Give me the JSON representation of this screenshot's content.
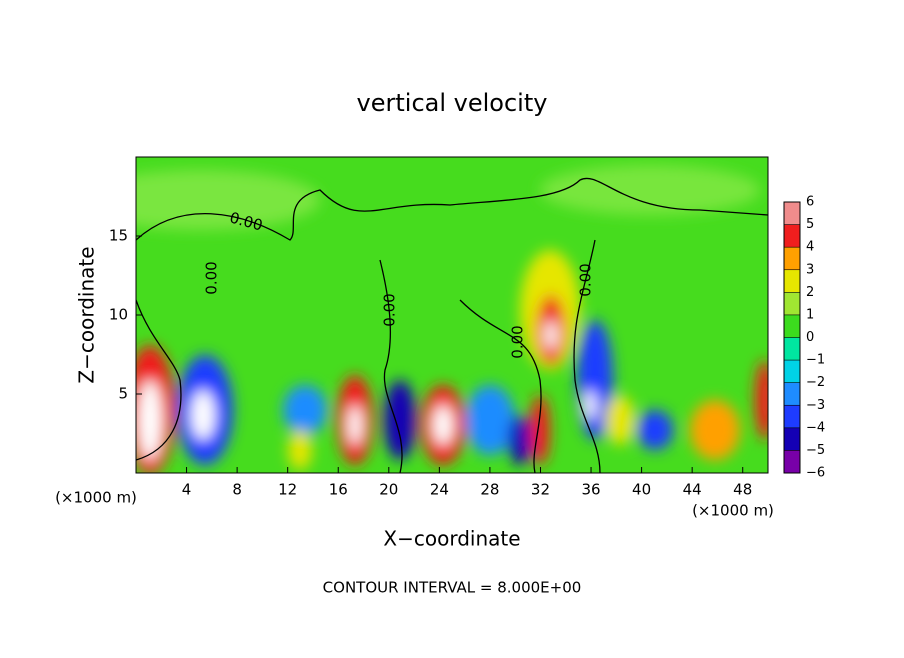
{
  "chart_data": {
    "type": "contour",
    "title": "vertical velocity",
    "x_label": "X−coordinate",
    "y_label": "Z−coordinate",
    "x_unit_labels": [
      "(×1000 m)",
      "(×1000 m)"
    ],
    "footer": "CONTOUR INTERVAL = 8.000E+00",
    "contour_label": "0.00",
    "xlim": [
      0,
      50
    ],
    "xticks": [
      4,
      8,
      12,
      16,
      20,
      24,
      28,
      32,
      36,
      40,
      44,
      48
    ],
    "ylim": [
      0,
      20
    ],
    "yticks": [
      5,
      10,
      15
    ],
    "colorbar": {
      "lim": [
        -6,
        6
      ],
      "ticks": [
        -6,
        -5,
        -4,
        -3,
        -2,
        -1,
        0,
        1,
        2,
        3,
        4,
        5,
        6
      ],
      "tick_labels": [
        "−6",
        "−5",
        "−4",
        "−3",
        "−2",
        "−1",
        "0",
        "1",
        "2",
        "3",
        "4",
        "5",
        "6"
      ],
      "colors": [
        "#7800a8",
        "#1400b4",
        "#1e3cff",
        "#1e8cff",
        "#00d2e6",
        "#00e6a0",
        "#3cdc1e",
        "#a0e632",
        "#e6e600",
        "#ffa000",
        "#f01e1e",
        "#f08c8c"
      ]
    }
  }
}
